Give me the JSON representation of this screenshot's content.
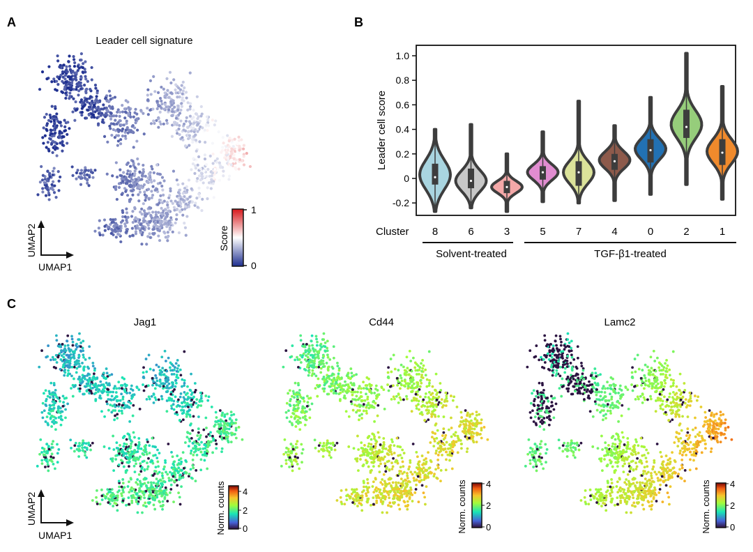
{
  "panels": {
    "A": {
      "letter": "A",
      "title": "Leader cell signature",
      "axis_x": "UMAP1",
      "axis_y": "UMAP2",
      "colorbar": {
        "label": "Score",
        "ticks": [
          "0",
          "1"
        ],
        "colors": [
          "#1d2e8f",
          "#ffffff",
          "#d7191c"
        ]
      }
    },
    "B": {
      "letter": "B",
      "ylabel": "Leader cell score",
      "cluster_label": "Cluster",
      "groups": [
        {
          "label": "Solvent-treated",
          "clusters": [
            "8",
            "6",
            "3"
          ]
        },
        {
          "label": "TGF-β1-treated",
          "clusters": [
            "5",
            "7",
            "4",
            "0",
            "2",
            "1"
          ]
        }
      ]
    },
    "C": {
      "letter": "C",
      "genes": [
        {
          "name": "Jag1",
          "colorbar_ticks": [
            "4",
            "2",
            "0"
          ],
          "colorbar_label": "Norm. counts"
        },
        {
          "name": "Cd44",
          "colorbar_ticks": [
            "4",
            "2",
            "0"
          ],
          "colorbar_label": "Norm. counts"
        },
        {
          "name": "Lamc2",
          "colorbar_ticks": [
            "4",
            "2",
            "0"
          ],
          "colorbar_label": "Norm. counts"
        }
      ],
      "axis_x": "UMAP1",
      "axis_y": "UMAP2"
    }
  },
  "chart_data": [
    {
      "type": "violin",
      "ylabel": "Leader cell score",
      "ylim": [
        -0.25,
        1.05
      ],
      "yticks": [
        "-0.2",
        "0",
        "0.2",
        "0.4",
        "0.6",
        "0.8",
        "1.0"
      ],
      "ytick_values": [
        -0.2,
        0,
        0.2,
        0.4,
        0.6,
        0.8,
        1.0
      ],
      "categories": [
        "8",
        "6",
        "3",
        "5",
        "7",
        "4",
        "0",
        "2",
        "1"
      ],
      "series": [
        {
          "cluster": "8",
          "color": "#a9d5e0",
          "min": -0.27,
          "max": 0.4,
          "q1": -0.05,
          "median": 0.01,
          "q3": 0.12,
          "peak": 0.03,
          "spread": 0.17
        },
        {
          "cluster": "6",
          "color": "#c7c7c7",
          "min": -0.24,
          "max": 0.44,
          "q1": -0.08,
          "median": -0.02,
          "q3": 0.08,
          "peak": -0.02,
          "spread": 0.12
        },
        {
          "cluster": "3",
          "color": "#f4a8a8",
          "min": -0.27,
          "max": 0.2,
          "q1": -0.12,
          "median": -0.07,
          "q3": -0.02,
          "peak": -0.07,
          "spread": 0.07
        },
        {
          "cluster": "5",
          "color": "#e18cd0",
          "min": -0.19,
          "max": 0.38,
          "q1": -0.01,
          "median": 0.05,
          "q3": 0.1,
          "peak": 0.05,
          "spread": 0.09
        },
        {
          "cluster": "7",
          "color": "#dbe29a",
          "min": -0.2,
          "max": 0.63,
          "q1": -0.06,
          "median": 0.05,
          "q3": 0.14,
          "peak": 0.05,
          "spread": 0.13
        },
        {
          "cluster": "4",
          "color": "#8d5a4b",
          "min": -0.18,
          "max": 0.43,
          "q1": 0.07,
          "median": 0.14,
          "q3": 0.2,
          "peak": 0.15,
          "spread": 0.1
        },
        {
          "cluster": "0",
          "color": "#2271b3",
          "min": -0.13,
          "max": 0.66,
          "q1": 0.13,
          "median": 0.23,
          "q3": 0.32,
          "peak": 0.24,
          "spread": 0.12
        },
        {
          "cluster": "2",
          "color": "#96cd7b",
          "min": -0.05,
          "max": 1.02,
          "q1": 0.33,
          "median": 0.42,
          "q3": 0.56,
          "peak": 0.44,
          "spread": 0.16
        },
        {
          "cluster": "1",
          "color": "#f08a2c",
          "min": -0.17,
          "max": 0.75,
          "q1": 0.11,
          "median": 0.21,
          "q3": 0.32,
          "peak": 0.22,
          "spread": 0.14
        }
      ]
    }
  ]
}
